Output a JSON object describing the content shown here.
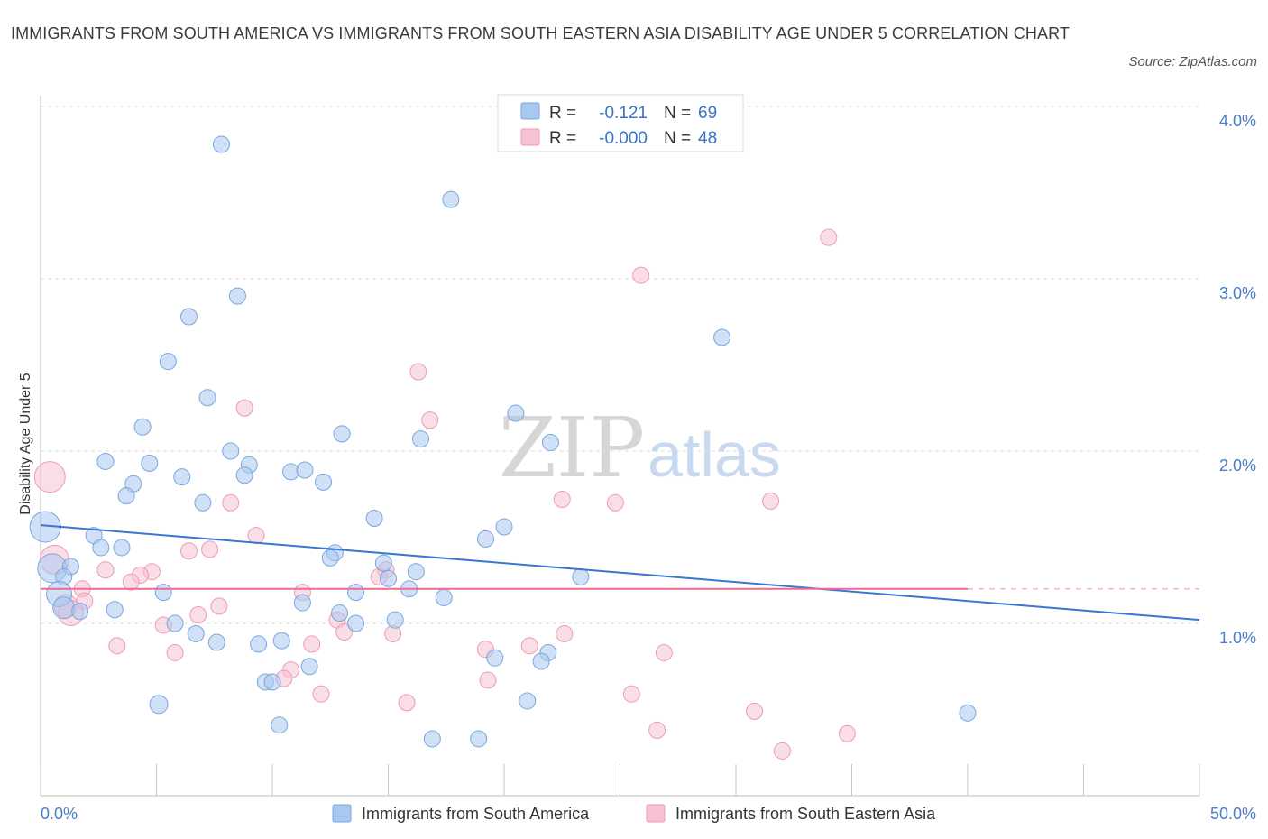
{
  "title": "IMMIGRANTS FROM SOUTH AMERICA VS IMMIGRANTS FROM SOUTH EASTERN ASIA DISABILITY AGE UNDER 5 CORRELATION CHART",
  "source": "Source: ZipAtlas.com",
  "watermark": {
    "zip": "ZIP",
    "atlas": "atlas"
  },
  "legend_box": {
    "rows": [
      {
        "r_label": "R =",
        "r_value": "-0.121",
        "n_label": "N =",
        "n_value": "69",
        "color": "#a9c8f0"
      },
      {
        "r_label": "R =",
        "r_value": "-0.000",
        "n_label": "N =",
        "n_value": "48",
        "color": "#f6bfd0"
      }
    ]
  },
  "colors": {
    "blue_fill": "#a9c8f0",
    "blue_stroke": "#7aa6dd",
    "blue_line": "#3a77d0",
    "pink_fill": "#f6c2d2",
    "pink_stroke": "#ee9ab5",
    "pink_line": "#ec6c93",
    "grid": "#dedede",
    "axis_text": "#4a7ec9"
  },
  "chart_data": {
    "type": "scatter",
    "title": "IMMIGRANTS FROM SOUTH AMERICA VS IMMIGRANTS FROM SOUTH EASTERN ASIA DISABILITY AGE UNDER 5 CORRELATION CHART",
    "xlabel": "",
    "ylabel": "Disability Age Under 5",
    "xlim": [
      0,
      50
    ],
    "ylim": [
      0,
      4.0
    ],
    "x_tick_labels": [
      {
        "value": 0,
        "label": "0.0%"
      },
      {
        "value": 50,
        "label": "50.0%"
      }
    ],
    "y_tick_labels": [
      {
        "value": 1.0,
        "label": "1.0%"
      },
      {
        "value": 2.0,
        "label": "2.0%"
      },
      {
        "value": 3.0,
        "label": "3.0%"
      },
      {
        "value": 4.0,
        "label": "4.0%"
      }
    ],
    "grid": true,
    "legend_position": "bottom",
    "series": [
      {
        "name": "Immigrants from South America",
        "color": "#a9c8f0",
        "trend": {
          "x": [
            0,
            50
          ],
          "y": [
            1.57,
            1.02
          ]
        },
        "points": [
          {
            "x": 7.8,
            "y": 3.78,
            "s": 8
          },
          {
            "x": 17.7,
            "y": 3.46,
            "s": 8
          },
          {
            "x": 8.5,
            "y": 2.9,
            "s": 8
          },
          {
            "x": 6.4,
            "y": 2.78,
            "s": 8
          },
          {
            "x": 29.4,
            "y": 2.66,
            "s": 8
          },
          {
            "x": 5.5,
            "y": 2.52,
            "s": 8
          },
          {
            "x": 7.2,
            "y": 2.31,
            "s": 8
          },
          {
            "x": 20.5,
            "y": 2.22,
            "s": 8
          },
          {
            "x": 4.4,
            "y": 2.14,
            "s": 8
          },
          {
            "x": 13,
            "y": 2.1,
            "s": 8
          },
          {
            "x": 16.4,
            "y": 2.07,
            "s": 8
          },
          {
            "x": 22,
            "y": 2.05,
            "s": 8
          },
          {
            "x": 8.2,
            "y": 2.0,
            "s": 8
          },
          {
            "x": 2.8,
            "y": 1.94,
            "s": 8
          },
          {
            "x": 4.7,
            "y": 1.93,
            "s": 8
          },
          {
            "x": 9,
            "y": 1.92,
            "s": 8
          },
          {
            "x": 10.8,
            "y": 1.88,
            "s": 8
          },
          {
            "x": 11.4,
            "y": 1.89,
            "s": 8
          },
          {
            "x": 6.1,
            "y": 1.85,
            "s": 8
          },
          {
            "x": 8.8,
            "y": 1.86,
            "s": 8
          },
          {
            "x": 12.2,
            "y": 1.82,
            "s": 8
          },
          {
            "x": 4.0,
            "y": 1.81,
            "s": 8
          },
          {
            "x": 3.7,
            "y": 1.74,
            "s": 8
          },
          {
            "x": 7.0,
            "y": 1.7,
            "s": 8
          },
          {
            "x": 14.4,
            "y": 1.61,
            "s": 8
          },
          {
            "x": 0.2,
            "y": 1.56,
            "s": 16
          },
          {
            "x": 20,
            "y": 1.56,
            "s": 8
          },
          {
            "x": 2.3,
            "y": 1.51,
            "s": 8
          },
          {
            "x": 19.2,
            "y": 1.49,
            "s": 8
          },
          {
            "x": 2.6,
            "y": 1.44,
            "s": 8
          },
          {
            "x": 3.5,
            "y": 1.44,
            "s": 8
          },
          {
            "x": 12.7,
            "y": 1.41,
            "s": 8
          },
          {
            "x": 12.5,
            "y": 1.38,
            "s": 8
          },
          {
            "x": 0.5,
            "y": 1.32,
            "s": 15
          },
          {
            "x": 1.3,
            "y": 1.33,
            "s": 8
          },
          {
            "x": 14.8,
            "y": 1.35,
            "s": 8
          },
          {
            "x": 16.2,
            "y": 1.3,
            "s": 8
          },
          {
            "x": 1.0,
            "y": 1.27,
            "s": 8
          },
          {
            "x": 15.0,
            "y": 1.26,
            "s": 8
          },
          {
            "x": 23.3,
            "y": 1.27,
            "s": 8
          },
          {
            "x": 15.9,
            "y": 1.2,
            "s": 8
          },
          {
            "x": 5.3,
            "y": 1.18,
            "s": 8
          },
          {
            "x": 13.6,
            "y": 1.18,
            "s": 8
          },
          {
            "x": 0.8,
            "y": 1.17,
            "s": 13
          },
          {
            "x": 17.4,
            "y": 1.15,
            "s": 8
          },
          {
            "x": 11.3,
            "y": 1.12,
            "s": 8
          },
          {
            "x": 1.0,
            "y": 1.09,
            "s": 11
          },
          {
            "x": 1.7,
            "y": 1.07,
            "s": 8
          },
          {
            "x": 3.2,
            "y": 1.08,
            "s": 8
          },
          {
            "x": 12.9,
            "y": 1.06,
            "s": 8
          },
          {
            "x": 15.3,
            "y": 1.02,
            "s": 8
          },
          {
            "x": 5.8,
            "y": 1.0,
            "s": 8
          },
          {
            "x": 13.6,
            "y": 1.0,
            "s": 8
          },
          {
            "x": 6.7,
            "y": 0.94,
            "s": 8
          },
          {
            "x": 7.6,
            "y": 0.89,
            "s": 8
          },
          {
            "x": 10.4,
            "y": 0.9,
            "s": 8
          },
          {
            "x": 9.4,
            "y": 0.88,
            "s": 8
          },
          {
            "x": 21.9,
            "y": 0.83,
            "s": 8
          },
          {
            "x": 19.6,
            "y": 0.8,
            "s": 8
          },
          {
            "x": 21.6,
            "y": 0.78,
            "s": 8
          },
          {
            "x": 11.6,
            "y": 0.75,
            "s": 8
          },
          {
            "x": 9.7,
            "y": 0.66,
            "s": 8
          },
          {
            "x": 10.0,
            "y": 0.66,
            "s": 8
          },
          {
            "x": 21.0,
            "y": 0.55,
            "s": 8
          },
          {
            "x": 5.1,
            "y": 0.53,
            "s": 9
          },
          {
            "x": 40.0,
            "y": 0.48,
            "s": 8
          },
          {
            "x": 10.3,
            "y": 0.41,
            "s": 8
          },
          {
            "x": 16.9,
            "y": 0.33,
            "s": 8
          },
          {
            "x": 18.9,
            "y": 0.33,
            "s": 8
          }
        ]
      },
      {
        "name": "Immigrants from South Eastern Asia",
        "color": "#f6c2d2",
        "trend": {
          "x": [
            0,
            40
          ],
          "y": [
            1.2,
            1.2
          ]
        },
        "points": [
          {
            "x": 34.0,
            "y": 3.24,
            "s": 8
          },
          {
            "x": 25.9,
            "y": 3.02,
            "s": 8
          },
          {
            "x": 16.3,
            "y": 2.46,
            "s": 8
          },
          {
            "x": 8.8,
            "y": 2.25,
            "s": 8
          },
          {
            "x": 16.8,
            "y": 2.18,
            "s": 8
          },
          {
            "x": 0.4,
            "y": 1.85,
            "s": 16
          },
          {
            "x": 22.5,
            "y": 1.72,
            "s": 8
          },
          {
            "x": 24.8,
            "y": 1.7,
            "s": 8
          },
          {
            "x": 31.5,
            "y": 1.71,
            "s": 8
          },
          {
            "x": 8.2,
            "y": 1.7,
            "s": 8
          },
          {
            "x": 9.3,
            "y": 1.51,
            "s": 8
          },
          {
            "x": 6.4,
            "y": 1.42,
            "s": 8
          },
          {
            "x": 7.3,
            "y": 1.43,
            "s": 8
          },
          {
            "x": 0.6,
            "y": 1.37,
            "s": 15
          },
          {
            "x": 2.8,
            "y": 1.31,
            "s": 8
          },
          {
            "x": 4.8,
            "y": 1.3,
            "s": 8
          },
          {
            "x": 4.3,
            "y": 1.28,
            "s": 8
          },
          {
            "x": 14.9,
            "y": 1.31,
            "s": 8
          },
          {
            "x": 14.6,
            "y": 1.27,
            "s": 8
          },
          {
            "x": 3.9,
            "y": 1.24,
            "s": 8
          },
          {
            "x": 1.8,
            "y": 1.2,
            "s": 8
          },
          {
            "x": 11.3,
            "y": 1.18,
            "s": 8
          },
          {
            "x": 1.1,
            "y": 1.1,
            "s": 12
          },
          {
            "x": 1.9,
            "y": 1.13,
            "s": 8
          },
          {
            "x": 7.7,
            "y": 1.1,
            "s": 8
          },
          {
            "x": 1.3,
            "y": 1.06,
            "s": 13
          },
          {
            "x": 6.8,
            "y": 1.05,
            "s": 8
          },
          {
            "x": 12.8,
            "y": 1.02,
            "s": 8
          },
          {
            "x": 5.3,
            "y": 0.99,
            "s": 8
          },
          {
            "x": 13.1,
            "y": 0.95,
            "s": 8
          },
          {
            "x": 15.2,
            "y": 0.94,
            "s": 8
          },
          {
            "x": 22.6,
            "y": 0.94,
            "s": 8
          },
          {
            "x": 3.3,
            "y": 0.87,
            "s": 8
          },
          {
            "x": 11.7,
            "y": 0.88,
            "s": 8
          },
          {
            "x": 21.1,
            "y": 0.87,
            "s": 8
          },
          {
            "x": 19.2,
            "y": 0.85,
            "s": 8
          },
          {
            "x": 5.8,
            "y": 0.83,
            "s": 8
          },
          {
            "x": 26.9,
            "y": 0.83,
            "s": 8
          },
          {
            "x": 10.8,
            "y": 0.73,
            "s": 8
          },
          {
            "x": 10.5,
            "y": 0.68,
            "s": 8
          },
          {
            "x": 19.3,
            "y": 0.67,
            "s": 8
          },
          {
            "x": 12.1,
            "y": 0.59,
            "s": 8
          },
          {
            "x": 25.5,
            "y": 0.59,
            "s": 8
          },
          {
            "x": 15.8,
            "y": 0.54,
            "s": 8
          },
          {
            "x": 30.8,
            "y": 0.49,
            "s": 8
          },
          {
            "x": 26.6,
            "y": 0.38,
            "s": 8
          },
          {
            "x": 34.8,
            "y": 0.36,
            "s": 8
          },
          {
            "x": 32.0,
            "y": 0.26,
            "s": 8
          }
        ]
      }
    ]
  }
}
